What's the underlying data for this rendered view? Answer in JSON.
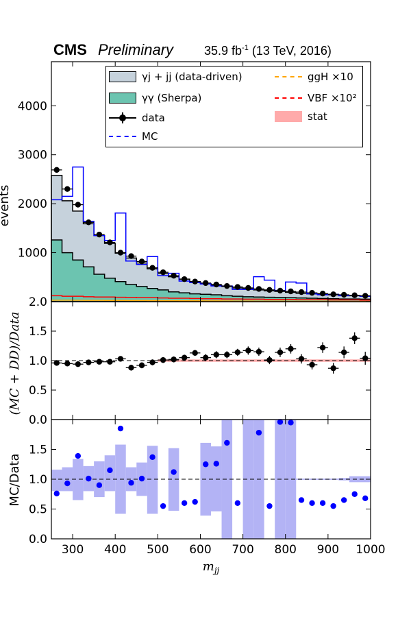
{
  "header": {
    "experiment": "CMS",
    "status": "Preliminary",
    "lumi_value": "35.9 fb",
    "lumi_exp": "-1",
    "lumi_rest": " (13 TeV, 2016)"
  },
  "legend": {
    "entries": [
      {
        "label": "γj + jj (data-driven)",
        "kind": "fill",
        "color": "#c6d2dc"
      },
      {
        "label": "γγ (Sherpa)",
        "kind": "fill",
        "color": "#6cc4b0"
      },
      {
        "label": "data",
        "kind": "errbar",
        "color": "#000000"
      },
      {
        "label": "MC",
        "kind": "dash",
        "color": "#0000ff"
      },
      {
        "label": "ggH ×10",
        "kind": "dash",
        "color": "#ffa500"
      },
      {
        "label": "VBF ×10²",
        "kind": "dash",
        "color": "#ff0000"
      },
      {
        "label": "stat",
        "kind": "fill",
        "color": "#ffaaaa"
      }
    ]
  },
  "chart_data": [
    {
      "type": "line",
      "panel": "top",
      "xlabel": "",
      "ylabel": "events",
      "xlim": [
        250,
        1000
      ],
      "ylim": [
        0,
        4900
      ],
      "yticks": [
        2.0,
        1000,
        2000,
        3000,
        4000
      ],
      "ytick_labels": [
        "2.0",
        "1000",
        "2000",
        "3000",
        "4000"
      ],
      "bin_edges": [
        250,
        275,
        300,
        325,
        350,
        375,
        400,
        425,
        450,
        475,
        500,
        525,
        550,
        575,
        600,
        625,
        650,
        675,
        700,
        725,
        750,
        775,
        800,
        825,
        850,
        875,
        900,
        925,
        950,
        975,
        1000
      ],
      "stack_bkg_total": [
        2580,
        2060,
        1850,
        1590,
        1350,
        1190,
        990,
        890,
        790,
        670,
        580,
        510,
        460,
        410,
        370,
        340,
        310,
        280,
        260,
        240,
        220,
        210,
        190,
        170,
        160,
        150,
        140,
        130,
        120,
        110
      ],
      "stack_gamma_gamma": [
        1260,
        1000,
        850,
        710,
        560,
        480,
        410,
        350,
        310,
        270,
        240,
        200,
        180,
        160,
        150,
        140,
        120,
        110,
        100,
        95,
        90,
        85,
        80,
        75,
        70,
        65,
        60,
        55,
        55,
        50
      ],
      "data_values": [
        2690,
        2300,
        1980,
        1620,
        1370,
        1210,
        1000,
        930,
        820,
        690,
        600,
        530,
        460,
        410,
        380,
        350,
        320,
        300,
        280,
        260,
        240,
        225,
        210,
        195,
        180,
        165,
        150,
        140,
        130,
        120
      ],
      "data_errors": [
        52,
        48,
        44,
        40,
        37,
        35,
        32,
        30,
        29,
        26,
        24,
        23,
        21,
        20,
        19,
        19,
        18,
        17,
        17,
        16,
        15,
        15,
        14,
        14,
        13,
        13,
        12,
        12,
        11,
        11
      ],
      "series": [
        {
          "name": "MC",
          "values": [
            2080,
            2150,
            2750,
            1640,
            1350,
            1250,
            1810,
            830,
            760,
            920,
            530,
            580,
            420,
            390,
            360,
            320,
            320,
            250,
            250,
            510,
            440,
            230,
            400,
            380,
            160,
            140,
            150,
            120,
            130,
            110
          ]
        },
        {
          "name": "ggH ×10",
          "values": [
            30,
            30,
            28,
            27,
            26,
            25,
            24,
            23,
            22,
            21,
            20,
            19,
            18,
            17,
            16,
            15,
            14,
            13,
            12,
            11,
            10,
            10,
            9,
            9,
            8,
            8,
            7,
            7,
            6,
            6
          ]
        },
        {
          "name": "VBF ×10²",
          "values": [
            120,
            110,
            110,
            100,
            95,
            95,
            90,
            85,
            80,
            80,
            75,
            70,
            70,
            65,
            60,
            60,
            55,
            55,
            50,
            50,
            45,
            45,
            45,
            40,
            40,
            40,
            35,
            35,
            35,
            30
          ]
        }
      ]
    },
    {
      "type": "scatter",
      "panel": "middle",
      "xlabel": "",
      "ylabel": "(MC + DD)/Data",
      "xlim": [
        250,
        1000
      ],
      "ylim": [
        0,
        2
      ],
      "yticks": [
        0.0,
        0.5,
        1.0,
        1.5
      ],
      "ytick_labels": [
        "0.0",
        "0.5",
        "1.0",
        "1.5"
      ],
      "x": [
        262.5,
        287.5,
        312.5,
        337.5,
        362.5,
        387.5,
        412.5,
        437.5,
        462.5,
        487.5,
        512.5,
        537.5,
        562.5,
        587.5,
        612.5,
        637.5,
        662.5,
        687.5,
        712.5,
        737.5,
        762.5,
        787.5,
        812.5,
        837.5,
        862.5,
        887.5,
        912.5,
        937.5,
        962.5,
        987.5
      ],
      "y": [
        0.96,
        0.95,
        0.94,
        0.97,
        0.98,
        0.98,
        1.03,
        0.88,
        0.92,
        0.97,
        1.01,
        1.02,
        1.05,
        1.13,
        1.05,
        1.1,
        1.1,
        1.14,
        1.17,
        1.15,
        1.01,
        1.14,
        1.2,
        1.03,
        0.93,
        1.22,
        0.87,
        1.14,
        1.38,
        1.04
      ],
      "yerr": [
        0.03,
        0.03,
        0.04,
        0.04,
        0.04,
        0.04,
        0.04,
        0.05,
        0.05,
        0.05,
        0.05,
        0.05,
        0.05,
        0.05,
        0.06,
        0.06,
        0.06,
        0.06,
        0.07,
        0.07,
        0.07,
        0.08,
        0.08,
        0.08,
        0.08,
        0.09,
        0.09,
        0.1,
        0.1,
        0.11
      ],
      "stat_band": 0.02
    },
    {
      "type": "scatter",
      "panel": "bottom",
      "xlabel": "m_jj",
      "ylabel": "MC/Data",
      "xlim": [
        250,
        1000
      ],
      "ylim": [
        0,
        2
      ],
      "yticks": [
        0.0,
        0.5,
        1.0,
        1.5
      ],
      "ytick_labels": [
        "0.0",
        "0.5",
        "1.0",
        "1.5"
      ],
      "xticks": [
        300,
        400,
        500,
        600,
        700,
        800,
        900,
        1000
      ],
      "xtick_labels": [
        "300",
        "400",
        "500",
        "600",
        "700",
        "800",
        "900",
        "1000"
      ],
      "x": [
        262.5,
        287.5,
        312.5,
        337.5,
        362.5,
        387.5,
        412.5,
        437.5,
        462.5,
        487.5,
        512.5,
        537.5,
        562.5,
        587.5,
        612.5,
        637.5,
        662.5,
        687.5,
        712.5,
        737.5,
        762.5,
        787.5,
        812.5,
        837.5,
        862.5,
        887.5,
        912.5,
        937.5,
        962.5,
        987.5
      ],
      "y": [
        0.76,
        0.93,
        1.39,
        1.01,
        0.9,
        1.15,
        1.85,
        0.94,
        1.01,
        1.37,
        0.55,
        1.12,
        0.6,
        0.62,
        1.25,
        1.26,
        1.61,
        0.6,
        2.02,
        1.78,
        0.55,
        1.96,
        1.95,
        0.65,
        0.6,
        0.6,
        0.55,
        0.65,
        0.75,
        0.68
      ],
      "band_low": [
        0.8,
        0.8,
        0.65,
        0.8,
        0.7,
        0.8,
        0.42,
        0.8,
        0.72,
        0.42,
        1.0,
        0.47,
        1.0,
        1.0,
        0.39,
        0.46,
        0.0,
        1.0,
        0.0,
        0.0,
        1.0,
        0.0,
        0.0,
        0.99,
        0.99,
        0.99,
        0.99,
        0.98,
        0.95,
        0.95
      ],
      "band_high": [
        1.16,
        1.2,
        1.34,
        1.22,
        1.3,
        1.4,
        1.58,
        1.2,
        1.28,
        1.56,
        1.0,
        1.52,
        1.0,
        1.0,
        1.61,
        1.55,
        2.0,
        1.0,
        2.0,
        2.0,
        1.0,
        2.0,
        2.0,
        1.01,
        1.01,
        1.01,
        1.01,
        1.02,
        1.05,
        1.05
      ]
    }
  ]
}
